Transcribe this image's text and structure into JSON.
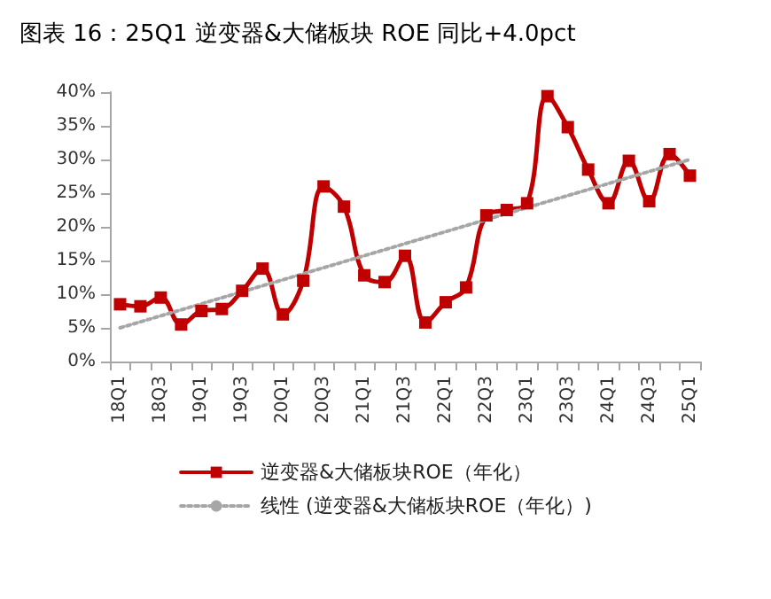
{
  "chart_data": {
    "type": "line",
    "title": "图表 16：25Q1 逆变器&大储板块 ROE 同比+4.0pct",
    "categories": [
      "18Q1",
      null,
      "18Q3",
      null,
      "19Q1",
      null,
      "19Q3",
      null,
      "20Q1",
      null,
      "20Q3",
      null,
      "21Q1",
      null,
      "21Q3",
      null,
      "22Q1",
      null,
      "22Q3",
      null,
      "23Q1",
      null,
      "23Q3",
      null,
      "24Q1",
      null,
      "24Q3",
      null,
      "25Q1"
    ],
    "series": [
      {
        "name": "逆变器&大储板块ROE（年化）",
        "color": "#c00000",
        "marker": "square",
        "line_style": "solid",
        "values": [
          8.5,
          8.2,
          9.5,
          5.5,
          7.5,
          7.8,
          10.5,
          13.8,
          7.0,
          12.0,
          26.0,
          23.0,
          12.8,
          11.8,
          15.7,
          5.8,
          8.8,
          11.0,
          21.7,
          22.5,
          23.5,
          39.4,
          34.8,
          28.5,
          23.5,
          29.8,
          23.8,
          30.8,
          27.6
        ]
      },
      {
        "name": "线性 (逆变器&大储板块ROE（年化）)",
        "color": "#a6a6a6",
        "marker": "none",
        "line_style": "dotted",
        "x": [
          "18Q1",
          "25Q1"
        ],
        "values": [
          5.0,
          30.0
        ]
      }
    ],
    "ylim": [
      0,
      40
    ],
    "yticks": [
      {
        "value": 0,
        "label": "0%"
      },
      {
        "value": 5,
        "label": "5%"
      },
      {
        "value": 10,
        "label": "10%"
      },
      {
        "value": 15,
        "label": "15%"
      },
      {
        "value": 20,
        "label": "20%"
      },
      {
        "value": 25,
        "label": "25%"
      },
      {
        "value": 30,
        "label": "30%"
      },
      {
        "value": 35,
        "label": "35%"
      },
      {
        "value": 40,
        "label": "40%"
      }
    ],
    "grid": false,
    "legend": "bottom"
  }
}
